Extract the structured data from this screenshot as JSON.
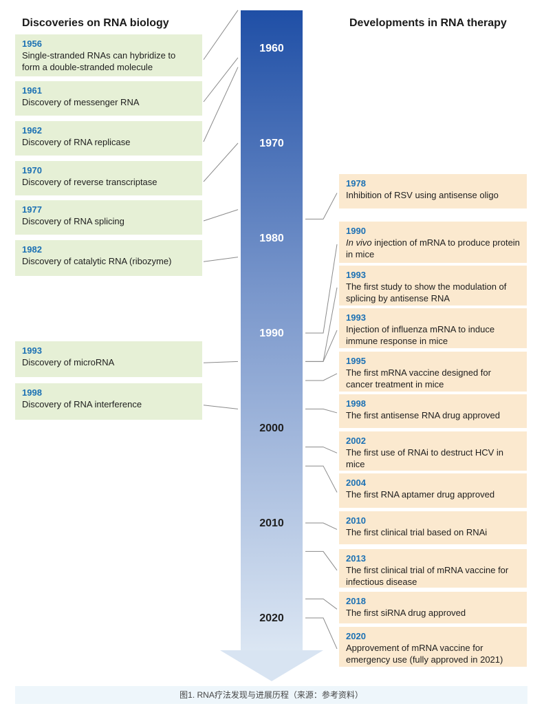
{
  "left_heading": "Discoveries on RNA biology",
  "right_heading": "Developments in RNA therapy",
  "decades": [
    "1960",
    "1970",
    "1980",
    "1990",
    "2000",
    "2010",
    "2020"
  ],
  "left_events": [
    {
      "year": "1956",
      "text": "Single-stranded RNAs can hybridize to form a double-stranded molecule"
    },
    {
      "year": "1961",
      "text": "Discovery of messenger RNA"
    },
    {
      "year": "1962",
      "text": "Discovery of RNA replicase"
    },
    {
      "year": "1970",
      "text": "Discovery of reverse transcriptase"
    },
    {
      "year": "1977",
      "text": "Discovery of RNA splicing"
    },
    {
      "year": "1982",
      "text": "Discovery of catalytic RNA (ribozyme)"
    },
    {
      "year": "1993",
      "text": "Discovery of microRNA"
    },
    {
      "year": "1998",
      "text": "Discovery of RNA interference"
    }
  ],
  "right_events": [
    {
      "year": "1978",
      "text": "Inhibition of RSV using antisense oligo"
    },
    {
      "year": "1990",
      "text_italic": "In vivo",
      "text": " injection of mRNA to produce protein in mice"
    },
    {
      "year": "1993",
      "text": "The first study to show the modulation of splicing by antisense RNA"
    },
    {
      "year": "1993",
      "text": "Injection of influenza mRNA to induce immune response in mice"
    },
    {
      "year": "1995",
      "text": "The first mRNA vaccine designed for cancer treatment in mice"
    },
    {
      "year": "1998",
      "text": "The first antisense RNA drug approved"
    },
    {
      "year": "2002",
      "text": "The first use of RNAi to destruct HCV in mice"
    },
    {
      "year": "2004",
      "text": "The first RNA aptamer drug approved"
    },
    {
      "year": "2010",
      "text": "The first clinical trial based on RNAi"
    },
    {
      "year": "2013",
      "text": "The first clinical trial of mRNA vaccine for infectious disease"
    },
    {
      "year": "2018",
      "text": "The first siRNA drug approved"
    },
    {
      "year": "2020",
      "text": "Approvement of mRNA vaccine for emergency use (fully approved in 2021)"
    }
  ],
  "caption": "图1. RNA疗法发现与进展历程（来源：参考资料）",
  "colors": {
    "bar_top": "#1f4fa6",
    "bar_bottom": "#dbe6f3",
    "left_card": "#e6f0d6",
    "right_card": "#fbe9cf",
    "year_text": "#1c71b4",
    "connector": "#8a8a8a"
  }
}
